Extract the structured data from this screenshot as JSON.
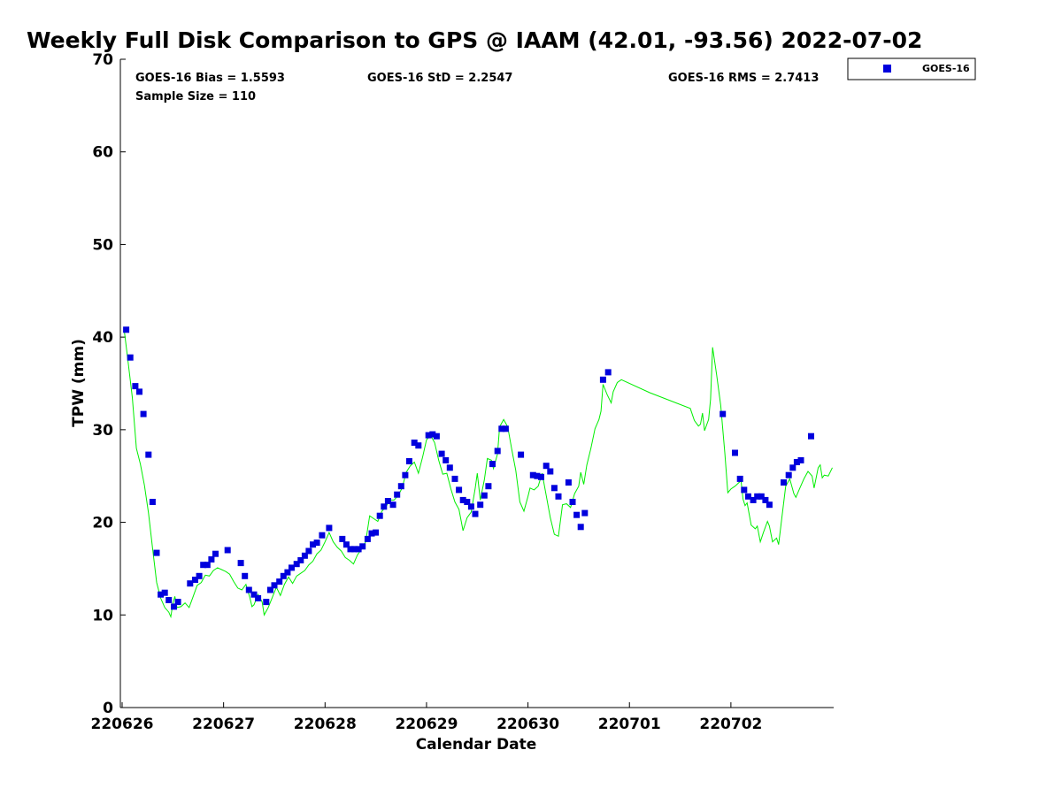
{
  "chart_data": {
    "type": "scatter",
    "title": "Weekly Full Disk Comparison to GPS @ IAAM (42.01, -93.56) 2022-07-02",
    "xlabel": "Calendar Date",
    "ylabel": "TPW (mm)",
    "xlim": [
      0,
      6.96
    ],
    "ylim": [
      0,
      70
    ],
    "x_ticks": [
      {
        "value": 0,
        "label": "220626"
      },
      {
        "value": 1,
        "label": "220627"
      },
      {
        "value": 2,
        "label": "220628"
      },
      {
        "value": 3,
        "label": "220629"
      },
      {
        "value": 4,
        "label": "220630"
      },
      {
        "value": 5,
        "label": "220701"
      },
      {
        "value": 6,
        "label": "220702"
      }
    ],
    "y_ticks": [
      0,
      10,
      20,
      30,
      40,
      50,
      60,
      70
    ],
    "grid": false,
    "legend_position": "top-right outside",
    "stats": {
      "bias": "GOES-16 Bias = 1.5593",
      "std": "GOES-16 StD = 2.2547",
      "rms": "GOES-16 RMS = 2.7413",
      "sample": "Sample Size = 110"
    },
    "series": [
      {
        "name": "GOES-16",
        "color": "#0000dd",
        "marker": "square",
        "points": [
          [
            0.04,
            40.8
          ],
          [
            0.08,
            37.8
          ],
          [
            0.13,
            34.7
          ],
          [
            0.17,
            34.1
          ],
          [
            0.21,
            31.7
          ],
          [
            0.26,
            27.3
          ],
          [
            0.3,
            22.2
          ],
          [
            0.34,
            16.7
          ],
          [
            0.38,
            12.2
          ],
          [
            0.42,
            12.4
          ],
          [
            0.46,
            11.6
          ],
          [
            0.51,
            10.9
          ],
          [
            0.55,
            11.4
          ],
          [
            0.67,
            13.4
          ],
          [
            0.72,
            13.8
          ],
          [
            0.76,
            14.2
          ],
          [
            0.8,
            15.4
          ],
          [
            0.84,
            15.4
          ],
          [
            0.88,
            16.0
          ],
          [
            0.92,
            16.6
          ],
          [
            1.04,
            17.0
          ],
          [
            1.17,
            15.6
          ],
          [
            1.21,
            14.2
          ],
          [
            1.25,
            12.7
          ],
          [
            1.3,
            12.2
          ],
          [
            1.34,
            11.8
          ],
          [
            1.42,
            11.4
          ],
          [
            1.46,
            12.7
          ],
          [
            1.5,
            13.2
          ],
          [
            1.55,
            13.6
          ],
          [
            1.59,
            14.2
          ],
          [
            1.63,
            14.6
          ],
          [
            1.67,
            15.1
          ],
          [
            1.72,
            15.5
          ],
          [
            1.76,
            15.9
          ],
          [
            1.8,
            16.4
          ],
          [
            1.84,
            16.9
          ],
          [
            1.88,
            17.6
          ],
          [
            1.92,
            17.8
          ],
          [
            1.97,
            18.6
          ],
          [
            2.04,
            19.4
          ],
          [
            2.17,
            18.2
          ],
          [
            2.21,
            17.6
          ],
          [
            2.25,
            17.1
          ],
          [
            2.29,
            17.1
          ],
          [
            2.33,
            17.1
          ],
          [
            2.37,
            17.4
          ],
          [
            2.42,
            18.2
          ],
          [
            2.46,
            18.8
          ],
          [
            2.5,
            18.9
          ],
          [
            2.54,
            20.7
          ],
          [
            2.58,
            21.7
          ],
          [
            2.62,
            22.3
          ],
          [
            2.67,
            21.9
          ],
          [
            2.71,
            23.0
          ],
          [
            2.75,
            23.9
          ],
          [
            2.79,
            25.1
          ],
          [
            2.83,
            26.6
          ],
          [
            2.88,
            28.6
          ],
          [
            2.92,
            28.3
          ],
          [
            3.02,
            29.4
          ],
          [
            3.06,
            29.5
          ],
          [
            3.1,
            29.3
          ],
          [
            3.15,
            27.4
          ],
          [
            3.19,
            26.7
          ],
          [
            3.23,
            25.9
          ],
          [
            3.28,
            24.7
          ],
          [
            3.32,
            23.5
          ],
          [
            3.36,
            22.4
          ],
          [
            3.4,
            22.2
          ],
          [
            3.44,
            21.7
          ],
          [
            3.48,
            20.9
          ],
          [
            3.53,
            21.9
          ],
          [
            3.57,
            22.9
          ],
          [
            3.61,
            23.9
          ],
          [
            3.65,
            26.3
          ],
          [
            3.7,
            27.7
          ],
          [
            3.74,
            30.1
          ],
          [
            3.78,
            30.1
          ],
          [
            3.93,
            27.3
          ],
          [
            4.05,
            25.1
          ],
          [
            4.09,
            25.0
          ],
          [
            4.13,
            24.9
          ],
          [
            4.18,
            26.1
          ],
          [
            4.22,
            25.5
          ],
          [
            4.26,
            23.7
          ],
          [
            4.3,
            22.8
          ],
          [
            4.4,
            24.3
          ],
          [
            4.44,
            22.2
          ],
          [
            4.48,
            20.8
          ],
          [
            4.52,
            19.5
          ],
          [
            4.56,
            21.0
          ],
          [
            4.74,
            35.4
          ],
          [
            4.79,
            36.2
          ],
          [
            5.92,
            31.7
          ],
          [
            6.04,
            27.5
          ],
          [
            6.09,
            24.7
          ],
          [
            6.13,
            23.5
          ],
          [
            6.17,
            22.8
          ],
          [
            6.22,
            22.4
          ],
          [
            6.26,
            22.8
          ],
          [
            6.3,
            22.8
          ],
          [
            6.34,
            22.4
          ],
          [
            6.38,
            21.9
          ],
          [
            6.52,
            24.3
          ],
          [
            6.57,
            25.1
          ],
          [
            6.61,
            25.9
          ],
          [
            6.65,
            26.5
          ],
          [
            6.69,
            26.7
          ],
          [
            6.79,
            29.3
          ]
        ]
      },
      {
        "name": "",
        "color": "#00ee00",
        "marker": "line",
        "points": [
          [
            0.02,
            40.8
          ],
          [
            0.06,
            37.2
          ],
          [
            0.1,
            33.5
          ],
          [
            0.14,
            28.0
          ],
          [
            0.18,
            26.3
          ],
          [
            0.22,
            24.0
          ],
          [
            0.26,
            21.0
          ],
          [
            0.3,
            17.2
          ],
          [
            0.34,
            13.5
          ],
          [
            0.38,
            11.8
          ],
          [
            0.42,
            10.8
          ],
          [
            0.46,
            10.3
          ],
          [
            0.48,
            9.8
          ],
          [
            0.5,
            11.2
          ],
          [
            0.52,
            12.0
          ],
          [
            0.54,
            10.8
          ],
          [
            0.58,
            10.9
          ],
          [
            0.62,
            11.3
          ],
          [
            0.66,
            10.8
          ],
          [
            0.7,
            12.0
          ],
          [
            0.74,
            13.2
          ],
          [
            0.78,
            13.5
          ],
          [
            0.82,
            14.3
          ],
          [
            0.86,
            14.2
          ],
          [
            0.9,
            14.8
          ],
          [
            0.94,
            15.1
          ],
          [
            0.98,
            14.9
          ],
          [
            1.02,
            14.7
          ],
          [
            1.06,
            14.4
          ],
          [
            1.1,
            13.6
          ],
          [
            1.14,
            12.9
          ],
          [
            1.18,
            12.7
          ],
          [
            1.22,
            13.3
          ],
          [
            1.26,
            11.8
          ],
          [
            1.28,
            10.9
          ],
          [
            1.3,
            11.1
          ],
          [
            1.34,
            12.2
          ],
          [
            1.38,
            11.4
          ],
          [
            1.4,
            10.0
          ],
          [
            1.44,
            10.8
          ],
          [
            1.48,
            11.9
          ],
          [
            1.52,
            13.0
          ],
          [
            1.56,
            12.1
          ],
          [
            1.6,
            13.3
          ],
          [
            1.64,
            14.1
          ],
          [
            1.68,
            13.4
          ],
          [
            1.72,
            14.2
          ],
          [
            1.76,
            14.5
          ],
          [
            1.8,
            14.8
          ],
          [
            1.84,
            15.4
          ],
          [
            1.88,
            15.8
          ],
          [
            1.92,
            16.6
          ],
          [
            1.96,
            17.0
          ],
          [
            2.0,
            17.9
          ],
          [
            2.04,
            18.9
          ],
          [
            2.08,
            17.9
          ],
          [
            2.12,
            17.3
          ],
          [
            2.16,
            16.9
          ],
          [
            2.2,
            16.2
          ],
          [
            2.24,
            15.9
          ],
          [
            2.28,
            15.5
          ],
          [
            2.32,
            16.5
          ],
          [
            2.36,
            17.1
          ],
          [
            2.4,
            17.9
          ],
          [
            2.44,
            20.7
          ],
          [
            2.48,
            20.4
          ],
          [
            2.52,
            20.1
          ],
          [
            2.56,
            21.2
          ],
          [
            2.6,
            21.7
          ],
          [
            2.64,
            22.4
          ],
          [
            2.68,
            22.4
          ],
          [
            2.72,
            22.9
          ],
          [
            2.76,
            23.7
          ],
          [
            2.8,
            25.4
          ],
          [
            2.84,
            26.1
          ],
          [
            2.88,
            26.5
          ],
          [
            2.92,
            25.3
          ],
          [
            2.96,
            27.0
          ],
          [
            3.0,
            28.9
          ],
          [
            3.04,
            29.4
          ],
          [
            3.08,
            28.6
          ],
          [
            3.12,
            26.7
          ],
          [
            3.16,
            25.2
          ],
          [
            3.2,
            25.3
          ],
          [
            3.24,
            23.6
          ],
          [
            3.28,
            22.2
          ],
          [
            3.32,
            21.4
          ],
          [
            3.36,
            19.1
          ],
          [
            3.4,
            20.5
          ],
          [
            3.44,
            21.1
          ],
          [
            3.48,
            23.7
          ],
          [
            3.5,
            25.3
          ],
          [
            3.53,
            22.4
          ],
          [
            3.57,
            24.6
          ],
          [
            3.6,
            26.9
          ],
          [
            3.64,
            26.7
          ],
          [
            3.66,
            25.8
          ],
          [
            3.7,
            27.4
          ],
          [
            3.72,
            30.3
          ],
          [
            3.76,
            31.1
          ],
          [
            3.8,
            30.3
          ],
          [
            3.84,
            27.9
          ],
          [
            3.88,
            25.6
          ],
          [
            3.92,
            22.2
          ],
          [
            3.96,
            21.2
          ],
          [
            4.0,
            22.8
          ],
          [
            4.02,
            23.7
          ],
          [
            4.06,
            23.5
          ],
          [
            4.1,
            23.9
          ],
          [
            4.14,
            25.3
          ],
          [
            4.18,
            22.9
          ],
          [
            4.22,
            20.5
          ],
          [
            4.26,
            18.7
          ],
          [
            4.3,
            18.5
          ],
          [
            4.34,
            21.9
          ],
          [
            4.38,
            22.0
          ],
          [
            4.42,
            21.6
          ],
          [
            4.46,
            23.1
          ],
          [
            4.5,
            23.9
          ],
          [
            4.52,
            25.4
          ],
          [
            4.55,
            24.1
          ],
          [
            4.58,
            26.2
          ],
          [
            4.62,
            28.0
          ],
          [
            4.66,
            30.1
          ],
          [
            4.7,
            31.1
          ],
          [
            4.72,
            32.0
          ],
          [
            4.74,
            34.9
          ],
          [
            4.78,
            33.8
          ],
          [
            4.82,
            32.9
          ],
          [
            4.84,
            34.1
          ],
          [
            4.88,
            35.1
          ],
          [
            4.92,
            35.4
          ],
          [
            5.2,
            34.0
          ],
          [
            5.6,
            32.3
          ],
          [
            5.64,
            31.0
          ],
          [
            5.68,
            30.4
          ],
          [
            5.7,
            30.6
          ],
          [
            5.72,
            31.8
          ],
          [
            5.74,
            29.9
          ],
          [
            5.78,
            31.1
          ],
          [
            5.8,
            33.3
          ],
          [
            5.82,
            38.9
          ],
          [
            5.86,
            35.9
          ],
          [
            5.9,
            32.6
          ],
          [
            5.94,
            27.5
          ],
          [
            5.97,
            23.2
          ],
          [
            6.0,
            23.6
          ],
          [
            6.04,
            23.9
          ],
          [
            6.08,
            24.3
          ],
          [
            6.1,
            24.5
          ],
          [
            6.12,
            22.5
          ],
          [
            6.14,
            21.8
          ],
          [
            6.16,
            22.1
          ],
          [
            6.2,
            19.7
          ],
          [
            6.24,
            19.3
          ],
          [
            6.26,
            19.6
          ],
          [
            6.29,
            17.9
          ],
          [
            6.32,
            18.9
          ],
          [
            6.36,
            20.1
          ],
          [
            6.38,
            19.6
          ],
          [
            6.41,
            17.9
          ],
          [
            6.45,
            18.3
          ],
          [
            6.47,
            17.6
          ],
          [
            6.5,
            20.3
          ],
          [
            6.54,
            23.9
          ],
          [
            6.58,
            24.7
          ],
          [
            6.62,
            23.1
          ],
          [
            6.64,
            22.7
          ],
          [
            6.68,
            23.7
          ],
          [
            6.72,
            24.7
          ],
          [
            6.76,
            25.5
          ],
          [
            6.8,
            25.0
          ],
          [
            6.82,
            23.7
          ],
          [
            6.86,
            25.9
          ],
          [
            6.88,
            26.2
          ],
          [
            6.9,
            24.8
          ],
          [
            6.92,
            25.1
          ],
          [
            6.96,
            25.0
          ],
          [
            7.0,
            25.9
          ]
        ]
      }
    ]
  }
}
